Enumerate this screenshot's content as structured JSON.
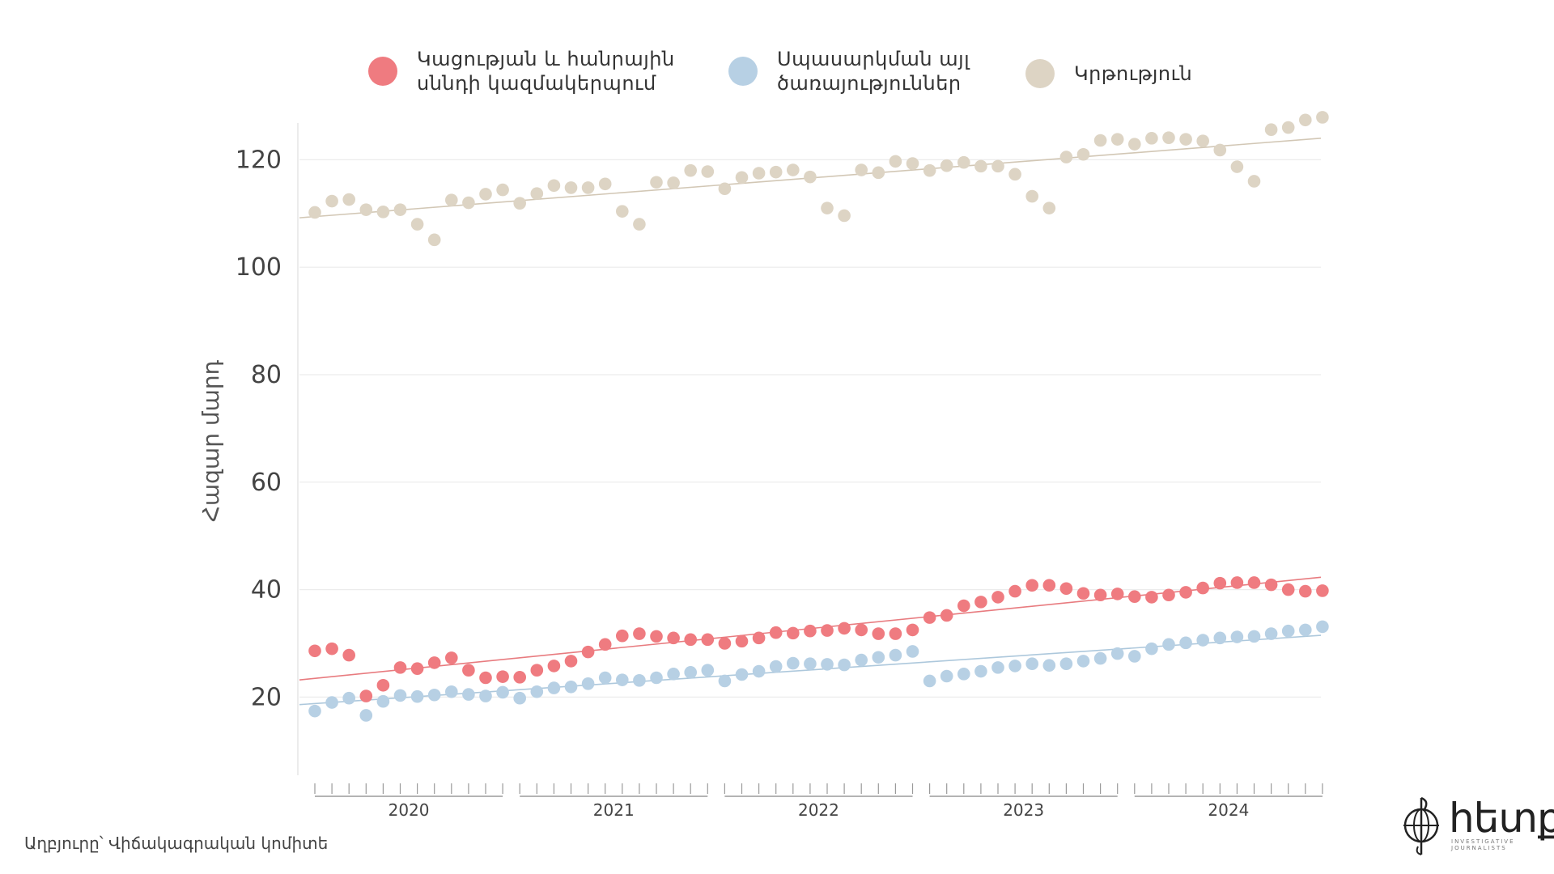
{
  "legend": [
    {
      "lines": [
        "Կացության և հանրային",
        "սննդի կազմակերպում"
      ],
      "color": "#ef7b80"
    },
    {
      "lines": [
        "Սպասարկման այլ",
        "ծառայություններ"
      ],
      "color": "#b7d0e4"
    },
    {
      "lines": [
        "Կրթություն"
      ],
      "color": "#ddd4c4"
    }
  ],
  "source": "Աղբյուրը՝ Վիճակագրական կոմիտե",
  "logo": {
    "text": "հետք",
    "subtitle": "INVESTIGATIVE JOURNALISTS",
    "icon": "compass-globe-icon"
  },
  "chart_data": {
    "type": "scatter",
    "ylabel": "Հազար մարդ",
    "ylim": [
      5,
      130
    ],
    "yticks": [
      20,
      40,
      60,
      80,
      100,
      120
    ],
    "grid": true,
    "year_labels": [
      "2020",
      "2021",
      "2022",
      "2023",
      "2024"
    ],
    "x_months": "2020-01 to 2024-12 (60 monthly observations)",
    "series": [
      {
        "name": "Կացության և հանրային սննդի կազմակերպում",
        "color": "#ef7b80",
        "trend_color": "#e87b7f",
        "trend": [
          23.2,
          42.3
        ],
        "values": [
          28.6,
          29.0,
          27.8,
          20.2,
          22.2,
          25.5,
          25.3,
          26.4,
          27.3,
          25.0,
          23.6,
          23.8,
          23.7,
          25.0,
          25.8,
          26.7,
          28.4,
          29.8,
          31.4,
          31.8,
          31.3,
          31.0,
          30.7,
          30.7,
          30.0,
          30.4,
          31.0,
          32.0,
          31.9,
          32.3,
          32.4,
          32.8,
          32.5,
          31.8,
          31.8,
          32.5,
          34.8,
          35.2,
          37.0,
          37.7,
          38.6,
          39.7,
          40.8,
          40.8,
          40.2,
          39.3,
          39.0,
          39.2,
          38.7,
          38.6,
          39.0,
          39.5,
          40.3,
          41.2,
          41.3,
          41.3,
          40.9,
          40.0,
          39.7,
          39.8
        ]
      },
      {
        "name": "Սպասարկման այլ ծառայություններ",
        "color": "#b7d0e4",
        "trend_color": "#adc8dc",
        "trend": [
          18.6,
          31.5
        ],
        "values": [
          17.4,
          19.0,
          19.8,
          16.6,
          19.2,
          20.3,
          20.1,
          20.4,
          21.0,
          20.5,
          20.2,
          20.9,
          19.8,
          21.0,
          21.7,
          21.9,
          22.5,
          23.6,
          23.2,
          23.1,
          23.6,
          24.3,
          24.6,
          25.0,
          23.0,
          24.2,
          24.8,
          25.7,
          26.3,
          26.2,
          26.1,
          26.0,
          26.9,
          27.4,
          27.8,
          28.5,
          23.0,
          23.9,
          24.3,
          24.8,
          25.5,
          25.8,
          26.2,
          25.9,
          26.2,
          26.7,
          27.2,
          28.1,
          27.6,
          29.0,
          29.8,
          30.1,
          30.6,
          31.0,
          31.2,
          31.3,
          31.8,
          32.3,
          32.5,
          33.1
        ]
      },
      {
        "name": "Կրթություն",
        "color": "#ddd4c4",
        "trend_color": "#d2c7b5",
        "trend": [
          109.2,
          124.0
        ],
        "values": [
          110.2,
          112.3,
          112.6,
          110.7,
          110.3,
          110.7,
          108.0,
          105.1,
          112.5,
          112.0,
          113.6,
          114.4,
          111.9,
          113.7,
          115.2,
          114.8,
          114.8,
          115.5,
          110.4,
          108.0,
          115.8,
          115.7,
          118.0,
          117.8,
          114.6,
          116.7,
          117.5,
          117.7,
          118.1,
          116.8,
          111.0,
          109.6,
          118.1,
          117.6,
          119.7,
          119.3,
          118.0,
          118.9,
          119.5,
          118.8,
          118.8,
          117.3,
          113.2,
          111.0,
          120.5,
          121.0,
          123.6,
          123.8,
          122.9,
          124.0,
          124.1,
          123.8,
          123.5,
          121.8,
          118.7,
          116.0,
          125.6,
          126.0,
          127.4,
          127.9
        ]
      }
    ]
  }
}
